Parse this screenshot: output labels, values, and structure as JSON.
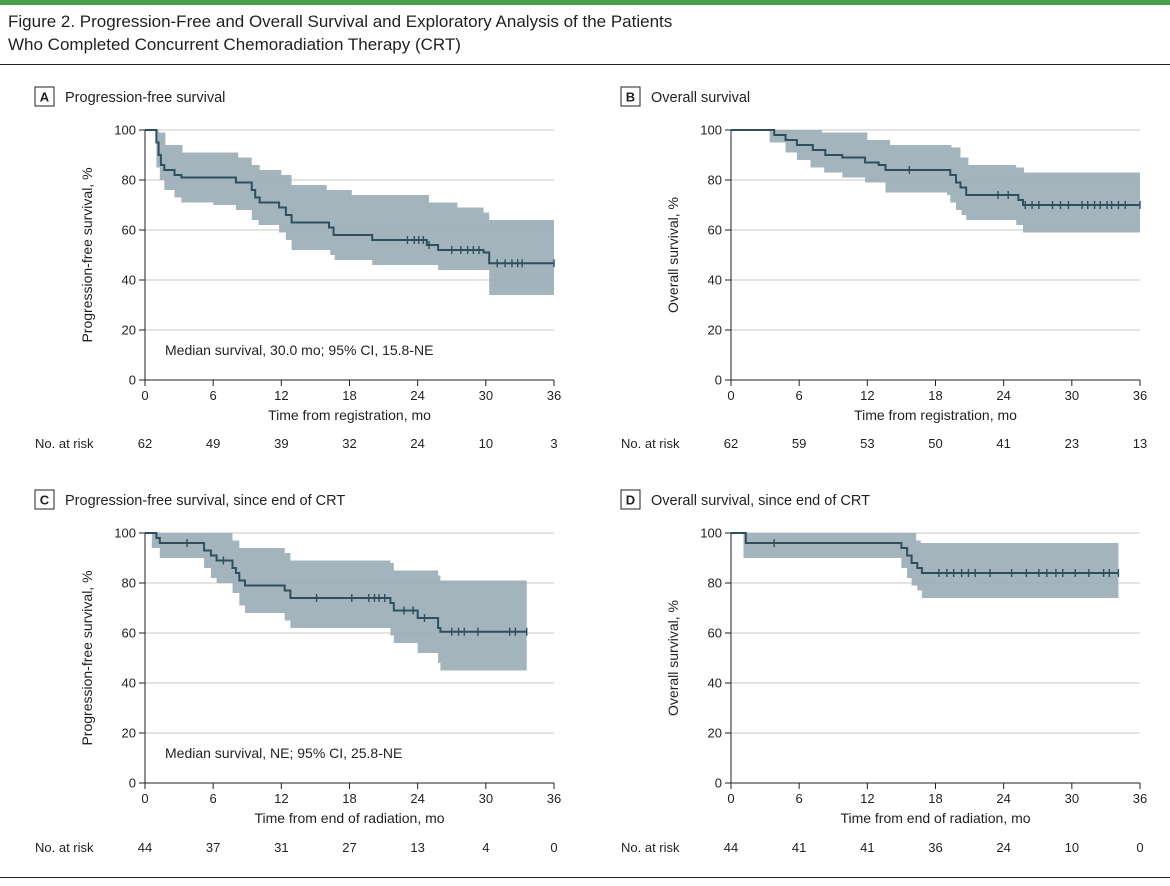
{
  "figure_title_line1": "Figure 2. Progression-Free and Overall Survival and Exploratory Analysis of the Patients",
  "figure_title_line2": "Who Completed Concurrent Chemoradiation Therapy (CRT)",
  "colors": {
    "curve": "#2f4f5f",
    "ci_band": "#9fb0b9",
    "grid": "#c8c8c8",
    "accent_bar": "#4aa04a"
  },
  "chart_data": [
    {
      "type": "line",
      "letter": "A",
      "title": "Progression-free survival",
      "xlabel": "Time from registration, mo",
      "ylabel": "Progression-free survival, %",
      "xlim": [
        0,
        36
      ],
      "ylim": [
        0,
        100
      ],
      "xticks": [
        0,
        6,
        12,
        18,
        24,
        30,
        36
      ],
      "yticks": [
        0,
        20,
        40,
        60,
        80,
        100
      ],
      "grid": "horizontal",
      "annotation": "Median survival, 30.0 mo; 95% CI, 15.8-NE",
      "risk_label": "No. at risk",
      "at_risk": [
        "62",
        "49",
        "39",
        "32",
        "24",
        "10",
        "3"
      ],
      "curve": [
        [
          0,
          100
        ],
        [
          0.8,
          100
        ],
        [
          1.0,
          95
        ],
        [
          1.2,
          90
        ],
        [
          1.4,
          86
        ],
        [
          1.7,
          84
        ],
        [
          2.6,
          82
        ],
        [
          3.2,
          81
        ],
        [
          8.0,
          79
        ],
        [
          9.4,
          76
        ],
        [
          9.7,
          73
        ],
        [
          10.1,
          71
        ],
        [
          11.8,
          69
        ],
        [
          12.4,
          66
        ],
        [
          12.9,
          63
        ],
        [
          16.2,
          61
        ],
        [
          16.6,
          58
        ],
        [
          20.0,
          56
        ],
        [
          24.8,
          54
        ],
        [
          25.8,
          52
        ],
        [
          29.8,
          51
        ],
        [
          30.3,
          46.7
        ],
        [
          36,
          46.7
        ]
      ],
      "ci_upper": [
        [
          0,
          100
        ],
        [
          1.2,
          99
        ],
        [
          1.8,
          94
        ],
        [
          3.3,
          91
        ],
        [
          8.2,
          89
        ],
        [
          9.4,
          86
        ],
        [
          10.1,
          84
        ],
        [
          12.0,
          82
        ],
        [
          12.9,
          78
        ],
        [
          16.0,
          76
        ],
        [
          18.2,
          74
        ],
        [
          25.0,
          71
        ],
        [
          27.5,
          69
        ],
        [
          29.8,
          67
        ],
        [
          30.3,
          64
        ],
        [
          36,
          64
        ]
      ],
      "ci_lower": [
        [
          0,
          100
        ],
        [
          1.0,
          85
        ],
        [
          1.3,
          80
        ],
        [
          1.7,
          76
        ],
        [
          2.6,
          73
        ],
        [
          3.2,
          71
        ],
        [
          6.0,
          70
        ],
        [
          8.0,
          68
        ],
        [
          9.4,
          64
        ],
        [
          10.0,
          62
        ],
        [
          11.8,
          59
        ],
        [
          12.4,
          56
        ],
        [
          12.9,
          52
        ],
        [
          16.3,
          50
        ],
        [
          16.7,
          48
        ],
        [
          20.0,
          46
        ],
        [
          25.8,
          44
        ],
        [
          30.3,
          34
        ],
        [
          36,
          34
        ]
      ],
      "censor": [
        23.1,
        23.7,
        24.1,
        24.5,
        25.0,
        27.0,
        27.8,
        28.4,
        28.9,
        29.4,
        31.0,
        31.7,
        32.3,
        32.8,
        33.2,
        36.0
      ]
    },
    {
      "type": "line",
      "letter": "B",
      "title": "Overall survival",
      "xlabel": "Time from registration, mo",
      "ylabel": "Overall survival, %",
      "xlim": [
        0,
        36
      ],
      "ylim": [
        0,
        100
      ],
      "xticks": [
        0,
        6,
        12,
        18,
        24,
        30,
        36
      ],
      "yticks": [
        0,
        20,
        40,
        60,
        80,
        100
      ],
      "grid": "horizontal",
      "annotation": "",
      "risk_label": "No. at risk",
      "at_risk": [
        "62",
        "59",
        "53",
        "50",
        "41",
        "23",
        "13"
      ],
      "curve": [
        [
          0,
          100
        ],
        [
          3.4,
          100
        ],
        [
          3.8,
          98
        ],
        [
          4.8,
          96
        ],
        [
          5.8,
          94
        ],
        [
          7.2,
          92
        ],
        [
          8.3,
          90
        ],
        [
          9.8,
          89
        ],
        [
          11.8,
          87
        ],
        [
          13.0,
          86
        ],
        [
          13.6,
          84
        ],
        [
          19.0,
          84
        ],
        [
          19.3,
          82
        ],
        [
          19.8,
          79
        ],
        [
          20.2,
          77
        ],
        [
          20.7,
          74
        ],
        [
          25.0,
          74
        ],
        [
          25.3,
          72
        ],
        [
          25.7,
          70
        ],
        [
          36,
          70
        ]
      ],
      "ci_upper": [
        [
          0,
          100
        ],
        [
          4.0,
          100
        ],
        [
          8.0,
          99
        ],
        [
          12.0,
          96
        ],
        [
          14.0,
          94
        ],
        [
          19.4,
          93
        ],
        [
          20.2,
          89
        ],
        [
          20.9,
          86
        ],
        [
          25.1,
          85
        ],
        [
          25.8,
          83
        ],
        [
          36,
          83
        ]
      ],
      "ci_lower": [
        [
          0,
          100
        ],
        [
          3.4,
          95
        ],
        [
          4.8,
          91
        ],
        [
          5.8,
          88
        ],
        [
          7.0,
          85
        ],
        [
          8.2,
          83
        ],
        [
          9.8,
          81
        ],
        [
          11.8,
          79
        ],
        [
          13.6,
          75
        ],
        [
          19.0,
          74
        ],
        [
          19.3,
          71
        ],
        [
          19.8,
          68
        ],
        [
          20.3,
          66
        ],
        [
          20.7,
          64
        ],
        [
          25.1,
          62
        ],
        [
          25.7,
          59
        ],
        [
          36,
          59
        ]
      ],
      "censor": [
        15.7,
        23.5,
        24.4,
        25.9,
        26.5,
        27.1,
        28.3,
        29.0,
        29.7,
        30.9,
        31.4,
        32.0,
        32.5,
        33.1,
        33.5,
        34.1,
        34.7,
        36.0
      ]
    },
    {
      "type": "line",
      "letter": "C",
      "title": "Progression-free survival, since end of CRT",
      "xlabel": "Time from end of radiation, mo",
      "ylabel": "Progression-free survival, %",
      "xlim": [
        0,
        36
      ],
      "ylim": [
        0,
        100
      ],
      "xticks": [
        0,
        6,
        12,
        18,
        24,
        30,
        36
      ],
      "yticks": [
        0,
        20,
        40,
        60,
        80,
        100
      ],
      "grid": "horizontal",
      "annotation": "Median survival, NE; 95% CI, 25.8-NE",
      "risk_label": "No. at risk",
      "at_risk": [
        "44",
        "37",
        "31",
        "27",
        "13",
        "4",
        "0"
      ],
      "curve": [
        [
          0,
          100
        ],
        [
          0.6,
          100
        ],
        [
          1.0,
          98
        ],
        [
          1.3,
          96
        ],
        [
          4.6,
          96
        ],
        [
          5.2,
          93
        ],
        [
          5.8,
          91
        ],
        [
          6.3,
          89
        ],
        [
          7.7,
          86
        ],
        [
          8.0,
          84
        ],
        [
          8.3,
          81
        ],
        [
          8.8,
          79
        ],
        [
          12.3,
          77
        ],
        [
          12.8,
          74
        ],
        [
          21.6,
          72
        ],
        [
          21.9,
          69
        ],
        [
          24.0,
          66
        ],
        [
          25.8,
          62
        ],
        [
          26.0,
          60.5
        ],
        [
          33.6,
          60.5
        ]
      ],
      "ci_upper": [
        [
          0,
          100
        ],
        [
          5.2,
          100
        ],
        [
          7.7,
          97
        ],
        [
          8.3,
          94
        ],
        [
          12.3,
          92
        ],
        [
          12.8,
          89
        ],
        [
          21.6,
          88
        ],
        [
          21.9,
          85
        ],
        [
          25.8,
          83
        ],
        [
          26.0,
          81
        ],
        [
          33.6,
          81
        ]
      ],
      "ci_lower": [
        [
          0,
          100
        ],
        [
          0.6,
          94
        ],
        [
          1.3,
          90
        ],
        [
          5.2,
          86
        ],
        [
          5.8,
          82
        ],
        [
          6.3,
          80
        ],
        [
          7.7,
          76
        ],
        [
          8.3,
          71
        ],
        [
          8.8,
          68
        ],
        [
          12.3,
          65
        ],
        [
          12.8,
          62
        ],
        [
          21.6,
          59
        ],
        [
          21.9,
          56
        ],
        [
          24.0,
          52
        ],
        [
          25.8,
          48
        ],
        [
          26.0,
          45
        ],
        [
          33.6,
          45
        ]
      ],
      "censor": [
        3.7,
        6.9,
        15.1,
        18.2,
        19.7,
        20.2,
        20.6,
        21.1,
        22.8,
        23.6,
        24.6,
        27.0,
        27.6,
        28.1,
        29.3,
        32.1,
        32.6,
        33.6
      ]
    },
    {
      "type": "line",
      "letter": "D",
      "title": "Overall survival, since end of CRT",
      "xlabel": "Time from end of radiation, mo",
      "ylabel": "Overall survival, %",
      "xlim": [
        0,
        36
      ],
      "ylim": [
        0,
        100
      ],
      "xticks": [
        0,
        6,
        12,
        18,
        24,
        30,
        36
      ],
      "yticks": [
        0,
        20,
        40,
        60,
        80,
        100
      ],
      "grid": "horizontal",
      "annotation": "",
      "risk_label": "No. at risk",
      "at_risk": [
        "44",
        "41",
        "41",
        "36",
        "24",
        "10",
        "0"
      ],
      "curve": [
        [
          0,
          100
        ],
        [
          1.1,
          100
        ],
        [
          1.3,
          96
        ],
        [
          14.5,
          96
        ],
        [
          15.0,
          94
        ],
        [
          15.5,
          91
        ],
        [
          15.9,
          88
        ],
        [
          16.4,
          86
        ],
        [
          16.8,
          84
        ],
        [
          34.1,
          84
        ]
      ],
      "ci_upper": [
        [
          0,
          100
        ],
        [
          15.8,
          100
        ],
        [
          16.3,
          97
        ],
        [
          16.7,
          96
        ],
        [
          34.1,
          96
        ]
      ],
      "ci_lower": [
        [
          0,
          100
        ],
        [
          1.1,
          90
        ],
        [
          14.5,
          90
        ],
        [
          15.0,
          86
        ],
        [
          15.5,
          82
        ],
        [
          15.9,
          79
        ],
        [
          16.4,
          77
        ],
        [
          16.8,
          74
        ],
        [
          34.1,
          74
        ]
      ],
      "censor": [
        3.8,
        18.3,
        19.0,
        19.6,
        20.3,
        20.9,
        21.5,
        22.8,
        24.7,
        26.0,
        27.1,
        27.8,
        28.6,
        29.2,
        30.3,
        31.5,
        32.8,
        33.3,
        34.1
      ]
    }
  ]
}
